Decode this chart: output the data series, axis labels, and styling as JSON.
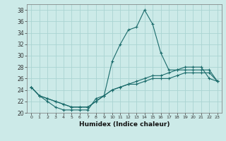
{
  "xlabel": "Humidex (Indice chaleur)",
  "ylabel": "",
  "background_color": "#cceae8",
  "grid_color": "#aad4d2",
  "line_color": "#1a6b6b",
  "xlim": [
    -0.5,
    23.5
  ],
  "ylim": [
    20,
    39
  ],
  "yticks": [
    20,
    22,
    24,
    26,
    28,
    30,
    32,
    34,
    36,
    38
  ],
  "xticks": [
    0,
    1,
    2,
    3,
    4,
    5,
    6,
    7,
    8,
    9,
    10,
    11,
    12,
    13,
    14,
    15,
    16,
    17,
    18,
    19,
    20,
    21,
    22,
    23
  ],
  "series": [
    [
      24.5,
      23.0,
      22.0,
      21.0,
      20.5,
      20.5,
      20.5,
      20.5,
      22.5,
      23.0,
      29.0,
      32.0,
      34.5,
      35.0,
      38.0,
      35.5,
      30.5,
      27.5,
      27.5,
      28.0,
      28.0,
      28.0,
      26.0,
      25.5
    ],
    [
      24.5,
      23.0,
      22.5,
      22.0,
      21.5,
      21.0,
      21.0,
      21.0,
      22.0,
      23.0,
      24.0,
      24.5,
      25.0,
      25.5,
      26.0,
      26.5,
      26.5,
      27.0,
      27.5,
      27.5,
      27.5,
      27.5,
      27.5,
      25.5
    ],
    [
      24.5,
      23.0,
      22.5,
      22.0,
      21.5,
      21.0,
      21.0,
      21.0,
      22.0,
      23.0,
      24.0,
      24.5,
      25.0,
      25.0,
      25.5,
      26.0,
      26.0,
      26.0,
      26.5,
      27.0,
      27.0,
      27.0,
      27.0,
      25.5
    ]
  ]
}
